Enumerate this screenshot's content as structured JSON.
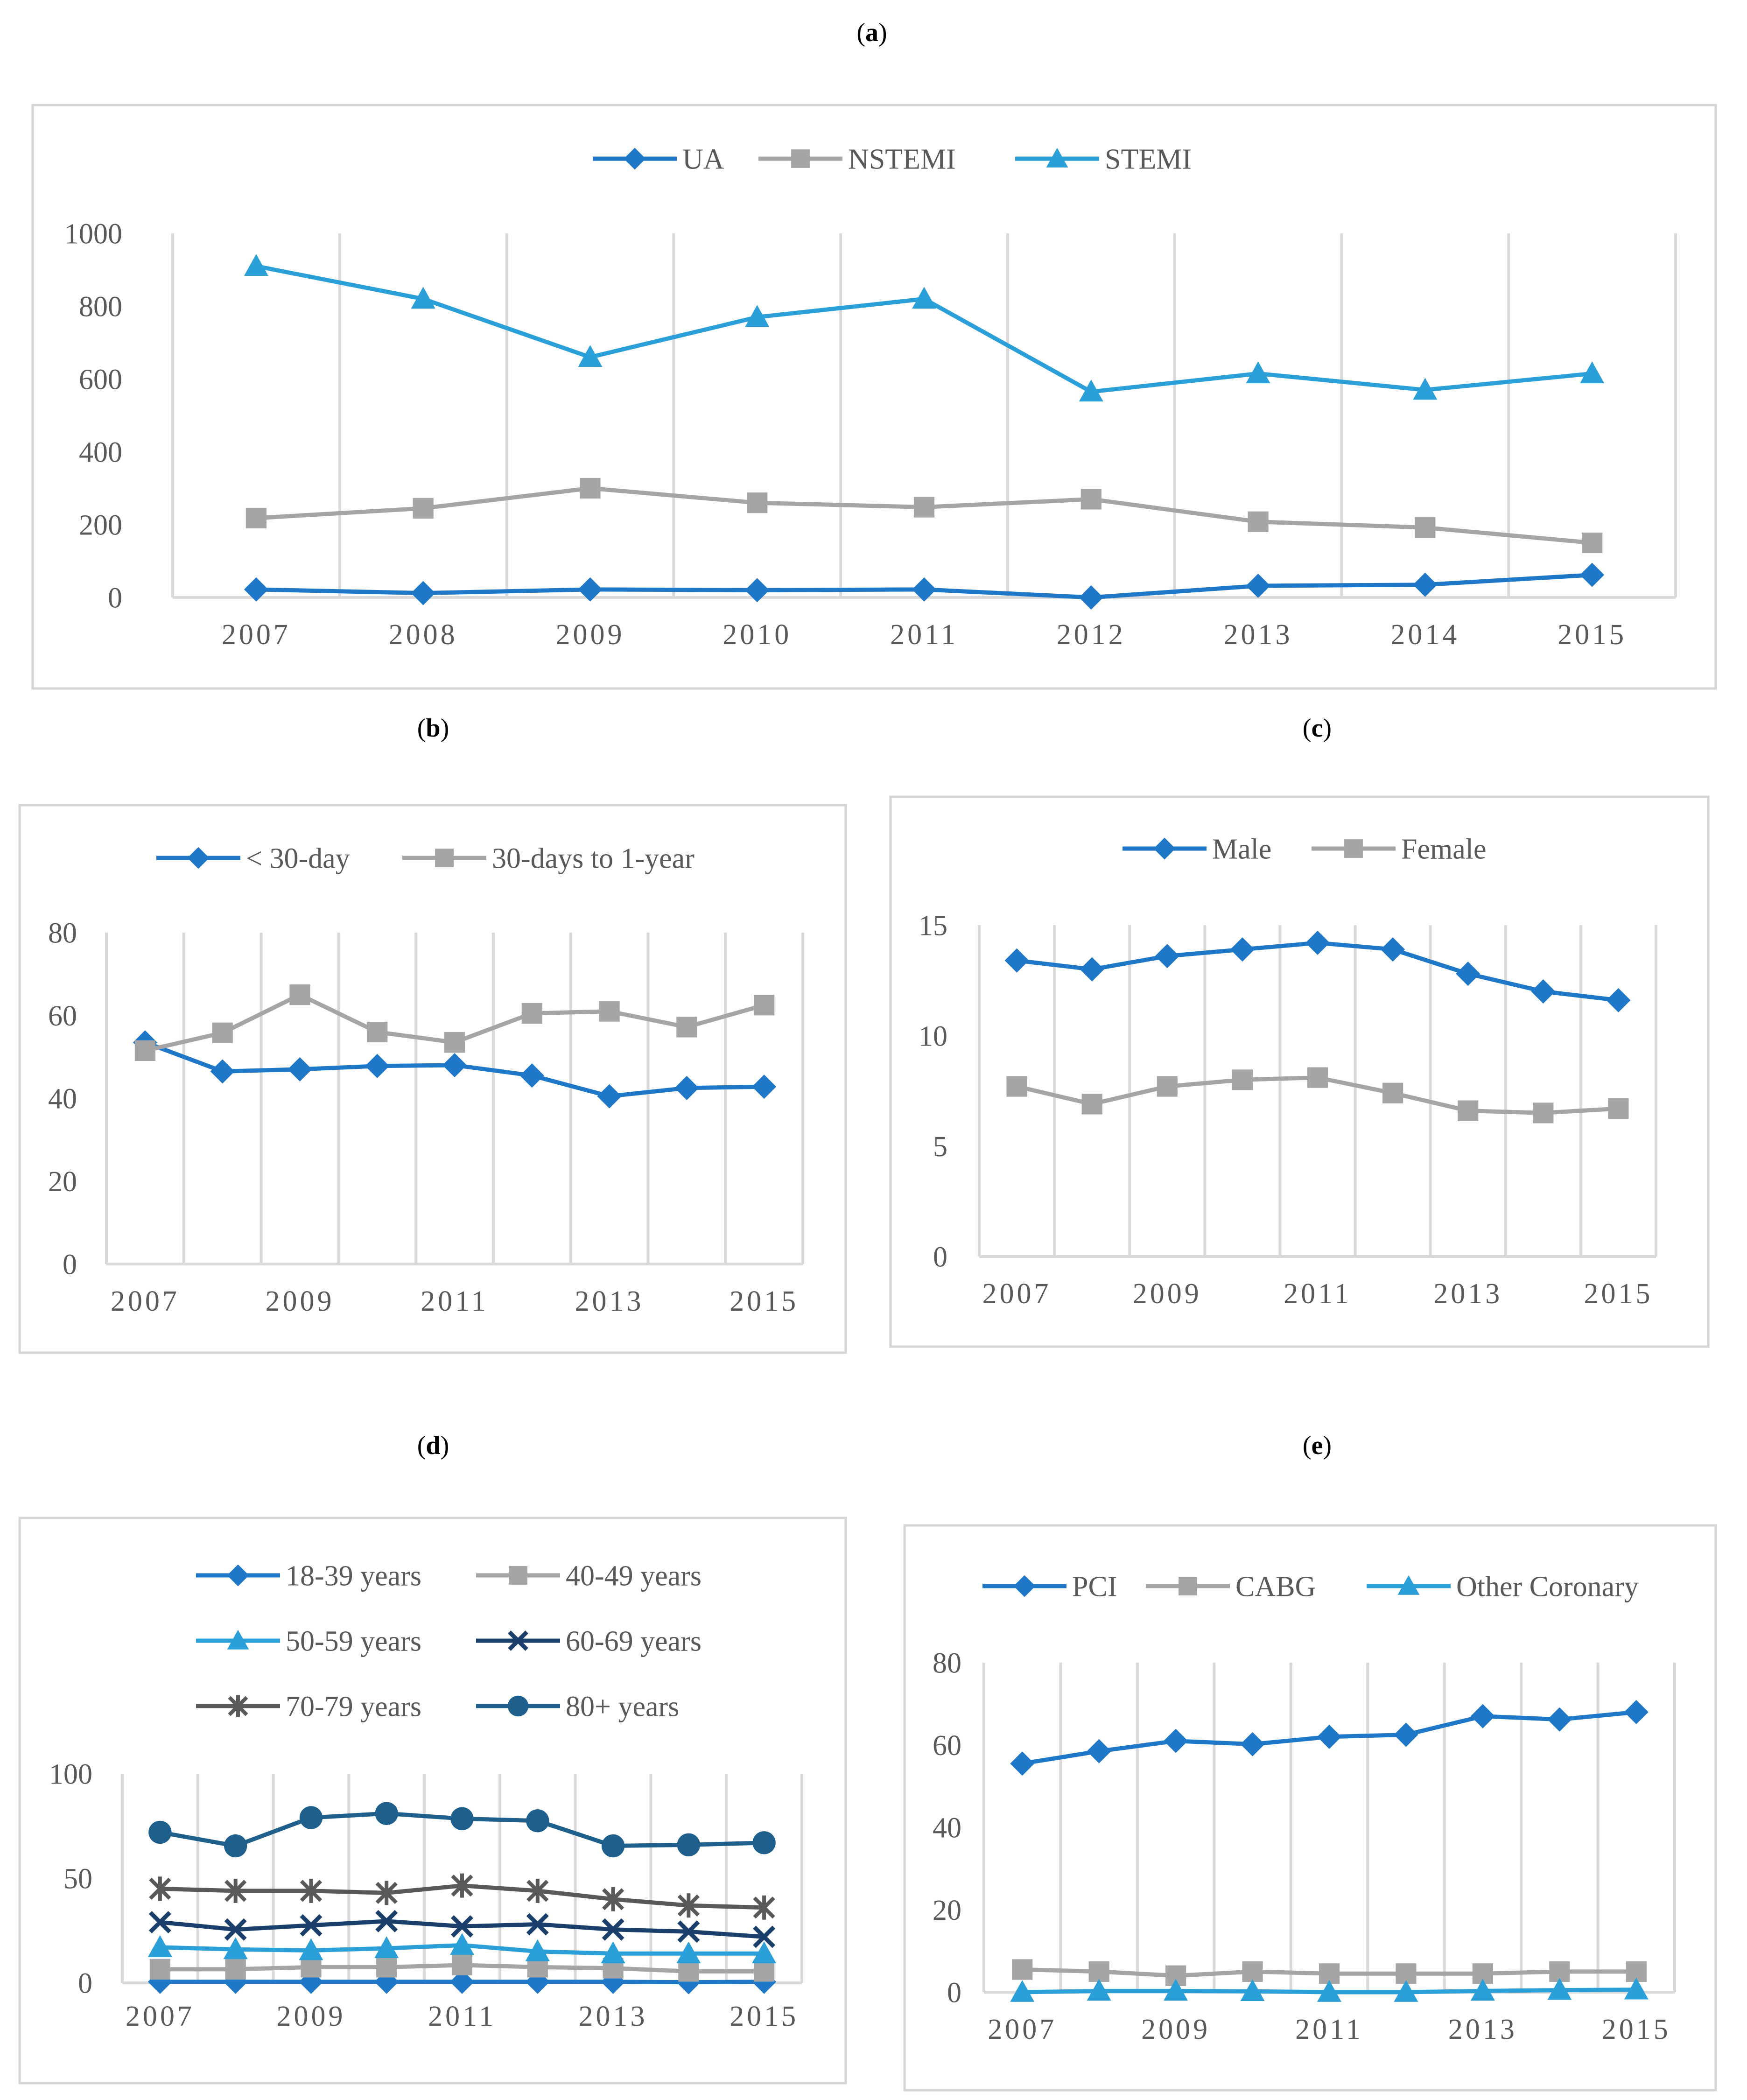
{
  "chart_data": [
    {
      "id": "a",
      "panel_label": "a",
      "type": "line",
      "categories": [
        "2007",
        "2008",
        "2009",
        "2010",
        "2011",
        "2012",
        "2013",
        "2014",
        "2015"
      ],
      "ylim": [
        0,
        1000
      ],
      "yticks": [
        0,
        200,
        400,
        600,
        800,
        1000
      ],
      "xticks": [
        "2007",
        "2008",
        "2009",
        "2010",
        "2011",
        "2012",
        "2013",
        "2014",
        "2015"
      ],
      "grid": "vertical",
      "legend_position": "top",
      "series": [
        {
          "name": "UA",
          "marker": "diamond",
          "color": "#1f77c8",
          "values": [
            22,
            12,
            22,
            20,
            22,
            0,
            32,
            35,
            62
          ]
        },
        {
          "name": "NSTEMI",
          "marker": "square",
          "color": "#a5a5a5",
          "values": [
            218,
            245,
            300,
            260,
            248,
            270,
            208,
            192,
            150
          ]
        },
        {
          "name": "STEMI",
          "marker": "triangle",
          "color": "#2a9fd8",
          "values": [
            910,
            820,
            660,
            770,
            820,
            565,
            615,
            570,
            615
          ]
        }
      ]
    },
    {
      "id": "b",
      "panel_label": "b",
      "type": "line",
      "categories": [
        "2007",
        "2008",
        "2009",
        "2010",
        "2011",
        "2012",
        "2013",
        "2014",
        "2015"
      ],
      "ylim": [
        0,
        80
      ],
      "yticks": [
        0,
        20,
        40,
        60,
        80
      ],
      "xticks": [
        "2007",
        "2009",
        "2011",
        "2013",
        "2015"
      ],
      "grid": "vertical",
      "legend_position": "top",
      "series": [
        {
          "name": "< 30-day",
          "marker": "diamond",
          "color": "#1f77c8",
          "values": [
            53.5,
            46.5,
            47,
            47.8,
            48,
            45.5,
            40.5,
            42.5,
            42.8
          ]
        },
        {
          "name": "30-days to 1-year",
          "marker": "square",
          "color": "#a5a5a5",
          "values": [
            51.5,
            55.8,
            65,
            56,
            53.5,
            60.5,
            61,
            57.2,
            62.5
          ]
        }
      ]
    },
    {
      "id": "c",
      "panel_label": "c",
      "type": "line",
      "categories": [
        "2007",
        "2008",
        "2009",
        "2010",
        "2011",
        "2012",
        "2013",
        "2014",
        "2015"
      ],
      "ylim": [
        0,
        15
      ],
      "yticks": [
        0,
        5,
        10,
        15
      ],
      "xticks": [
        "2007",
        "2009",
        "2011",
        "2013",
        "2015"
      ],
      "grid": "vertical",
      "legend_position": "top",
      "series": [
        {
          "name": "Male",
          "marker": "diamond",
          "color": "#1f77c8",
          "values": [
            13.4,
            13.0,
            13.6,
            13.9,
            14.2,
            13.9,
            12.8,
            12.0,
            11.6
          ]
        },
        {
          "name": "Female",
          "marker": "square",
          "color": "#a5a5a5",
          "values": [
            7.7,
            6.9,
            7.7,
            8.0,
            8.1,
            7.4,
            6.6,
            6.5,
            6.7
          ]
        }
      ]
    },
    {
      "id": "d",
      "panel_label": "d",
      "type": "line",
      "categories": [
        "2007",
        "2008",
        "2009",
        "2010",
        "2011",
        "2012",
        "2013",
        "2014",
        "2015"
      ],
      "ylim": [
        0,
        100
      ],
      "yticks": [
        0,
        50,
        100
      ],
      "xticks": [
        "2007",
        "2009",
        "2011",
        "2013",
        "2015"
      ],
      "grid": "vertical",
      "legend_position": "top",
      "series": [
        {
          "name": "18-39 years",
          "marker": "diamond",
          "color": "#1f77c8",
          "values": [
            0.5,
            0.5,
            0.5,
            0.5,
            0.5,
            0.5,
            0.5,
            0.3,
            0.5
          ]
        },
        {
          "name": "40-49 years",
          "marker": "square",
          "color": "#a5a5a5",
          "values": [
            6.5,
            6.5,
            7.5,
            7.5,
            8.5,
            7.5,
            7,
            5.5,
            5.5
          ]
        },
        {
          "name": "50-59 years",
          "marker": "triangle",
          "color": "#2a9fd8",
          "values": [
            17,
            16,
            15.5,
            16.5,
            18,
            15,
            14,
            14,
            14
          ]
        },
        {
          "name": "60-69 years",
          "marker": "x",
          "color": "#1a3f6b",
          "values": [
            29,
            25.5,
            27.5,
            29.5,
            27,
            28,
            25.5,
            24.5,
            22
          ]
        },
        {
          "name": "70-79 years",
          "marker": "star",
          "color": "#595959",
          "values": [
            45,
            44,
            44,
            43,
            46.5,
            44,
            40,
            37,
            36
          ]
        },
        {
          "name": "80+ years",
          "marker": "circle",
          "color": "#1e5f8c",
          "values": [
            72,
            65.5,
            79,
            81,
            78.5,
            77.5,
            65.5,
            66,
            67
          ]
        }
      ]
    },
    {
      "id": "e",
      "panel_label": "e",
      "type": "line",
      "categories": [
        "2007",
        "2008",
        "2009",
        "2010",
        "2011",
        "2012",
        "2013",
        "2014",
        "2015"
      ],
      "ylim": [
        0,
        80
      ],
      "yticks": [
        0,
        20,
        40,
        60,
        80
      ],
      "xticks": [
        "2007",
        "2009",
        "2011",
        "2013",
        "2015"
      ],
      "grid": "vertical",
      "legend_position": "top",
      "series": [
        {
          "name": "PCI",
          "marker": "diamond",
          "color": "#1f77c8",
          "values": [
            55.5,
            58.5,
            61,
            60.2,
            62,
            62.5,
            67,
            66.2,
            68
          ]
        },
        {
          "name": "CABG",
          "marker": "square",
          "color": "#a5a5a5",
          "values": [
            5.5,
            5,
            4,
            5,
            4.5,
            4.5,
            4.5,
            5,
            5
          ]
        },
        {
          "name": "Other Coronary",
          "marker": "triangle",
          "color": "#2a9fd8",
          "values": [
            0,
            0.3,
            0.3,
            0.2,
            0,
            0,
            0.3,
            0.5,
            0.6
          ]
        }
      ]
    }
  ]
}
